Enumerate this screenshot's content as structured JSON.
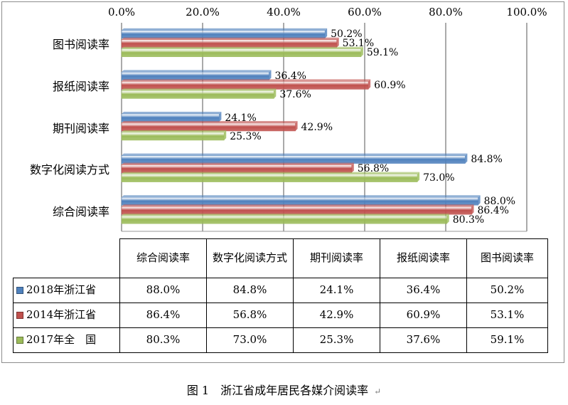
{
  "chart_data": {
    "type": "bar",
    "orientation": "horizontal",
    "categories": [
      "图书阅读率",
      "报纸阅读率",
      "期刊阅读率",
      "数字化阅读方式",
      "综合阅读率"
    ],
    "series": [
      {
        "name": "2018年浙江省",
        "color": "#4f81bd",
        "values": [
          50.2,
          36.4,
          24.1,
          84.8,
          88.0
        ],
        "labels": [
          "50.2%",
          "36.4%",
          "24.1%",
          "84.8%",
          "88.0%"
        ]
      },
      {
        "name": "2014年浙江省",
        "color": "#c0504d",
        "values": [
          53.1,
          60.9,
          42.9,
          56.8,
          86.4
        ],
        "labels": [
          "53.1%",
          "60.9%",
          "42.9%",
          "56.8%",
          "86.4%"
        ]
      },
      {
        "name": "2017年全　国",
        "color": "#9bbb59",
        "values": [
          59.1,
          37.6,
          25.3,
          73.0,
          80.3
        ],
        "labels": [
          "59.1%",
          "37.6%",
          "25.3%",
          "73.0%",
          "80.3%"
        ]
      }
    ],
    "xlim": [
      0,
      100
    ],
    "xticks": [
      "0.0%",
      "20.0%",
      "40.0%",
      "60.0%",
      "80.0%",
      "100.0%"
    ],
    "grid": true,
    "legend": "data-table-below",
    "title": "",
    "xlabel": "",
    "ylabel": ""
  },
  "table": {
    "columns": [
      "综合阅读率",
      "数字化阅读方式",
      "期刊阅读率",
      "报纸阅读率",
      "图书阅读率"
    ],
    "rows": [
      {
        "series": "2018年浙江省",
        "cells": [
          "88.0%",
          "84.8%",
          "24.1%",
          "36.4%",
          "50.2%"
        ]
      },
      {
        "series": "2014年浙江省",
        "cells": [
          "86.4%",
          "56.8%",
          "42.9%",
          "60.9%",
          "53.1%"
        ]
      },
      {
        "series": "2017年全　国",
        "cells": [
          "80.3%",
          "73.0%",
          "25.3%",
          "37.6%",
          "59.1%"
        ]
      }
    ]
  },
  "caption": {
    "text": "图 1　浙江省成年居民各媒介阅读率",
    "mark": "↵"
  }
}
